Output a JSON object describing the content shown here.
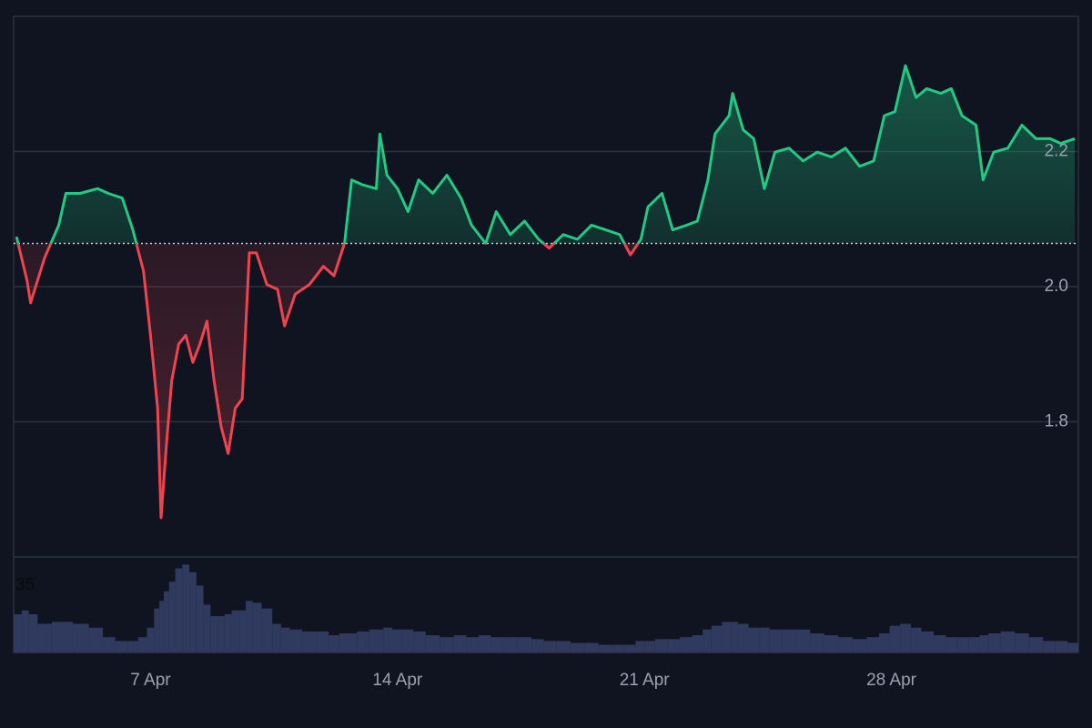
{
  "chart_data": {
    "type": "baseline",
    "x": [
      3.2,
      3.5,
      3.6,
      4.0,
      4.4,
      4.6,
      5.0,
      5.5,
      5.8,
      6.2,
      6.5,
      6.8,
      7.0,
      7.2,
      7.3,
      7.45,
      7.6,
      7.8,
      8.0,
      8.2,
      8.4,
      8.6,
      8.8,
      9.0,
      9.2,
      9.4,
      9.6,
      9.8,
      10.0,
      10.3,
      10.6,
      10.8,
      11.1,
      11.5,
      11.9,
      12.2,
      12.5,
      12.7,
      13.0,
      13.4,
      13.5,
      13.7,
      14.0,
      14.3,
      14.6,
      15.0,
      15.4,
      15.8,
      16.1,
      16.5,
      16.8,
      17.2,
      17.6,
      18.0,
      18.3,
      18.7,
      19.1,
      19.5,
      19.9,
      20.3,
      20.6,
      20.9,
      21.1,
      21.5,
      21.8,
      22.2,
      22.5,
      22.8,
      23.0,
      23.4,
      23.5,
      23.8,
      24.1,
      24.4,
      24.7,
      25.1,
      25.5,
      25.9,
      26.3,
      26.7,
      27.1,
      27.5,
      27.8,
      28.1,
      28.4,
      28.7,
      29.0,
      29.4,
      29.7,
      30.0,
      30.4,
      30.6,
      30.9,
      31.3,
      31.7,
      32.1,
      32.5,
      32.8,
      33.2
    ],
    "values": [
      2.074,
      2.009,
      1.976,
      2.043,
      2.091,
      2.138,
      2.138,
      2.145,
      2.138,
      2.131,
      2.084,
      2.023,
      1.928,
      1.82,
      1.658,
      1.766,
      1.861,
      1.915,
      1.928,
      1.888,
      1.915,
      1.949,
      1.861,
      1.793,
      1.753,
      1.82,
      1.834,
      2.05,
      2.05,
      2.003,
      1.996,
      1.942,
      1.989,
      2.003,
      2.03,
      2.016,
      2.064,
      2.158,
      2.151,
      2.145,
      2.226,
      2.165,
      2.145,
      2.111,
      2.158,
      2.138,
      2.165,
      2.131,
      2.091,
      2.064,
      2.111,
      2.077,
      2.097,
      2.07,
      2.057,
      2.077,
      2.07,
      2.091,
      2.084,
      2.077,
      2.047,
      2.07,
      2.118,
      2.138,
      2.084,
      2.091,
      2.097,
      2.158,
      2.226,
      2.253,
      2.286,
      2.232,
      2.219,
      2.145,
      2.199,
      2.205,
      2.186,
      2.199,
      2.192,
      2.205,
      2.178,
      2.186,
      2.253,
      2.259,
      2.327,
      2.28,
      2.293,
      2.286,
      2.293,
      2.253,
      2.239,
      2.158,
      2.199,
      2.205,
      2.239,
      2.219,
      2.219,
      2.212,
      2.219
    ],
    "baseline": 2.064,
    "up_color": "#22c983",
    "down_color": "#ef4450",
    "xlim": [
      3.12,
      33.3
    ],
    "xticks": [
      {
        "value": 7,
        "label": "7 Apr"
      },
      {
        "value": 14,
        "label": "14 Apr"
      },
      {
        "value": 21,
        "label": "21 Apr"
      },
      {
        "value": 28,
        "label": "28 Apr"
      }
    ],
    "ylim": [
      1.6,
      2.4
    ],
    "yticks": [
      {
        "value": 1.8,
        "label": "1.8"
      },
      {
        "value": 2,
        "label": "2.0"
      },
      {
        "value": 2.2,
        "label": "2.2"
      }
    ],
    "grid": true,
    "volume": {
      "color": "#2f3a5e",
      "ylim": [
        0,
        50
      ],
      "yticks": [
        35
      ],
      "values": [
        20,
        22,
        20,
        15,
        16,
        16,
        15,
        13,
        8,
        6,
        6,
        8,
        13,
        23,
        27,
        32,
        37,
        44,
        46,
        42,
        35,
        25,
        19,
        19,
        20,
        22,
        22,
        27,
        26,
        23,
        15,
        13,
        12,
        11,
        11,
        9,
        10,
        10,
        11,
        12,
        12,
        13,
        12,
        12,
        11,
        9,
        8,
        9,
        8,
        9,
        8,
        8,
        8,
        7,
        6,
        6,
        5,
        5,
        4,
        4,
        4,
        6,
        6,
        7,
        7,
        8,
        9,
        12,
        14,
        16,
        16,
        15,
        13,
        13,
        12,
        12,
        12,
        10,
        9,
        8,
        7,
        8,
        10,
        14,
        15,
        13,
        11,
        9,
        8,
        8,
        8,
        9,
        10,
        11,
        10,
        8,
        6,
        6,
        5
      ]
    }
  }
}
